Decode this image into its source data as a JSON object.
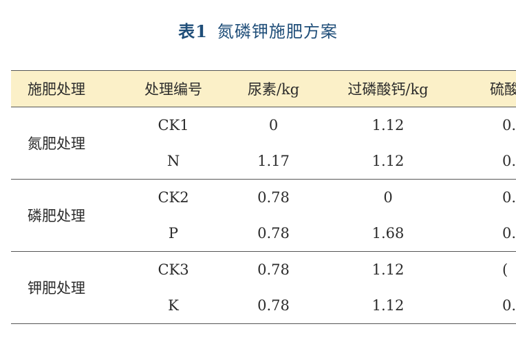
{
  "title": {
    "prefix": "表1",
    "text": "氮磷钾施肥方案"
  },
  "table": {
    "headers": [
      "施肥处理",
      "处理编号",
      "尿素/kg",
      "过磷酸钙/kg",
      "硫酸"
    ],
    "groups": [
      {
        "name": "氮肥处理",
        "rows": [
          [
            "CK1",
            "0",
            "1.12",
            "0."
          ],
          [
            "N",
            "1.17",
            "1.12",
            "0."
          ]
        ]
      },
      {
        "name": "磷肥处理",
        "rows": [
          [
            "CK2",
            "0.78",
            "0",
            "0."
          ],
          [
            "P",
            "0.78",
            "1.68",
            "0."
          ]
        ]
      },
      {
        "name": "钾肥处理",
        "rows": [
          [
            "CK3",
            "0.78",
            "1.12",
            "("
          ],
          [
            "K",
            "0.78",
            "1.12",
            "0."
          ]
        ]
      }
    ]
  }
}
